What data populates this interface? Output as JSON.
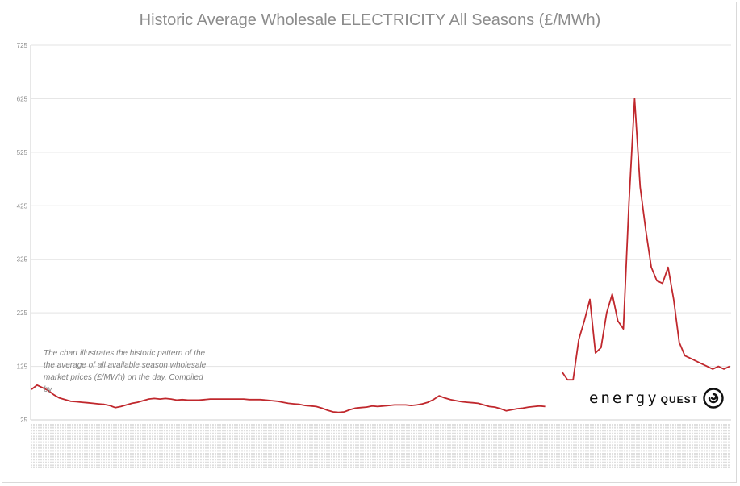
{
  "chart_data": {
    "type": "line",
    "title": "Historic Average Wholesale ELECTRICITY All Seasons (£/MWh)",
    "xlabel": "",
    "ylabel": "",
    "yticks": [
      25,
      125,
      225,
      325,
      425,
      525,
      625,
      725
    ],
    "ylim": [
      25,
      725
    ],
    "grid": true,
    "legend": "none",
    "line_color": "#c0282d",
    "x_axis_note": "dense dated tick labels (illegible)",
    "series": [
      {
        "values": [
          82,
          90,
          85,
          80,
          72,
          66,
          63,
          60,
          59,
          58,
          57,
          56,
          55,
          54,
          52,
          48,
          50,
          53,
          56,
          58,
          61,
          64,
          65,
          64,
          65,
          64,
          62,
          63,
          62,
          62,
          62,
          63,
          64,
          64,
          64,
          64,
          64,
          64,
          64,
          63,
          63,
          63,
          62,
          61,
          60,
          58,
          56,
          55,
          54,
          52,
          51,
          50,
          47,
          43,
          40,
          39,
          40,
          44,
          47,
          48,
          49,
          51,
          50,
          51,
          52,
          53,
          53,
          53,
          52,
          53,
          55,
          58,
          63,
          70,
          66,
          63,
          61,
          59,
          58,
          57,
          56,
          53,
          50,
          49,
          46,
          42,
          44,
          46,
          47,
          49,
          50,
          51,
          50,
          null,
          null,
          115,
          100,
          100,
          175,
          210,
          250,
          150,
          160,
          225,
          260,
          210,
          195,
          430,
          625,
          460,
          380,
          310,
          285,
          280,
          310,
          250,
          170,
          145,
          140,
          135,
          130,
          125,
          120,
          125,
          120,
          125
        ]
      }
    ],
    "annotation": "The chart illustrates the historic pattern of the the average of all available season wholesale market prices (£/MWh) on the day. Compiled by",
    "logo": {
      "word": "energy",
      "word_bold": "QUEST",
      "icon": "spiral-icon"
    }
  }
}
